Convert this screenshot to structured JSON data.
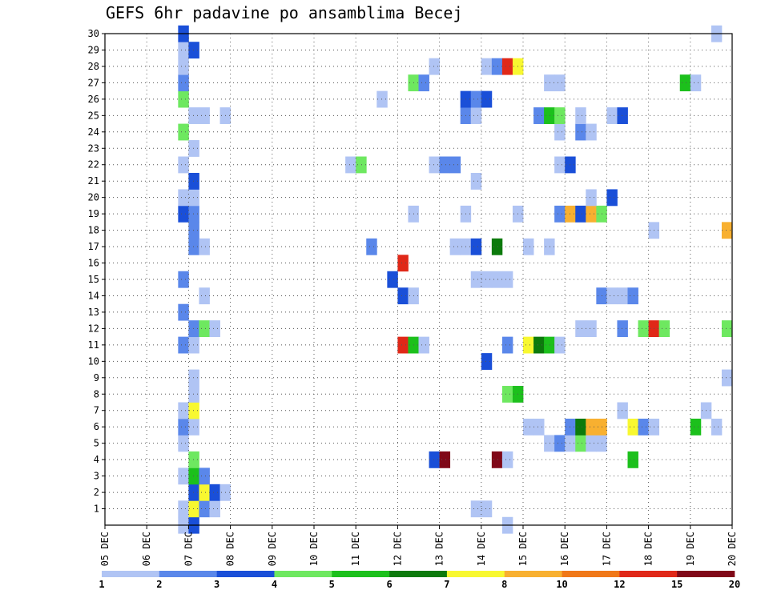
{
  "chart_data": {
    "type": "heatmap",
    "title": "GEFS 6hr padavine po ansamblima Becej",
    "x_tick_labels": [
      "05 DEC",
      "06 DEC",
      "07 DEC",
      "08 DEC",
      "09 DEC",
      "10 DEC",
      "11 DEC",
      "12 DEC",
      "13 DEC",
      "14 DEC",
      "15 DEC",
      "16 DEC",
      "17 DEC",
      "18 DEC",
      "19 DEC",
      "20 DEC"
    ],
    "y_tick_labels": [
      "1",
      "2",
      "3",
      "4",
      "5",
      "6",
      "7",
      "8",
      "9",
      "10",
      "11",
      "12",
      "13",
      "14",
      "15",
      "16",
      "17",
      "18",
      "19",
      "20",
      "21",
      "22",
      "23",
      "24",
      "25",
      "26",
      "27",
      "28",
      "29",
      "30"
    ],
    "xlim_days": [
      5,
      20
    ],
    "ylim_member": [
      0,
      30
    ],
    "step_hours": 6,
    "grid": true,
    "colorbar": {
      "colors": [
        "#b0c4f4",
        "#5a87ea",
        "#1a4fd8",
        "#6ee860",
        "#1cc01c",
        "#0c7a0c",
        "#f8f830",
        "#f8b030",
        "#f07818",
        "#e02818",
        "#800818"
      ],
      "tick_labels": [
        "1",
        "2",
        "3",
        "4",
        "5",
        "6",
        "7",
        "8",
        "10",
        "12",
        "15",
        "20"
      ]
    },
    "cells": [
      [
        6.75,
        0,
        1
      ],
      [
        7.0,
        0,
        3
      ],
      [
        14.5,
        0,
        1
      ],
      [
        6.75,
        1,
        1
      ],
      [
        7.0,
        1,
        7
      ],
      [
        7.25,
        1,
        2
      ],
      [
        7.5,
        1,
        1
      ],
      [
        13.75,
        1,
        1
      ],
      [
        14.0,
        1,
        1
      ],
      [
        7.0,
        2,
        3
      ],
      [
        7.25,
        2,
        7
      ],
      [
        7.5,
        2,
        3
      ],
      [
        7.75,
        2,
        1
      ],
      [
        6.75,
        3,
        1
      ],
      [
        7.0,
        3,
        5
      ],
      [
        7.25,
        3,
        2
      ],
      [
        7.0,
        4,
        4
      ],
      [
        12.75,
        4,
        3
      ],
      [
        13.0,
        4,
        11
      ],
      [
        14.25,
        4,
        11
      ],
      [
        14.5,
        4,
        1
      ],
      [
        17.5,
        4,
        5
      ],
      [
        6.75,
        5,
        1
      ],
      [
        15.5,
        5,
        1
      ],
      [
        15.75,
        5,
        2
      ],
      [
        16.0,
        5,
        1
      ],
      [
        16.25,
        5,
        4
      ],
      [
        16.5,
        5,
        1
      ],
      [
        16.75,
        5,
        1
      ],
      [
        6.75,
        6,
        2
      ],
      [
        7.0,
        6,
        1
      ],
      [
        15.0,
        6,
        1
      ],
      [
        15.25,
        6,
        1
      ],
      [
        16.0,
        6,
        2
      ],
      [
        16.25,
        6,
        6
      ],
      [
        16.5,
        6,
        8
      ],
      [
        16.75,
        6,
        8
      ],
      [
        17.5,
        6,
        7
      ],
      [
        17.75,
        6,
        2
      ],
      [
        18.0,
        6,
        1
      ],
      [
        19.0,
        6,
        5
      ],
      [
        19.5,
        6,
        1
      ],
      [
        6.75,
        7,
        1
      ],
      [
        7.0,
        7,
        7
      ],
      [
        17.25,
        7,
        1
      ],
      [
        19.25,
        7,
        1
      ],
      [
        7.0,
        8,
        1
      ],
      [
        14.5,
        8,
        4
      ],
      [
        14.75,
        8,
        5
      ],
      [
        7.0,
        9,
        1
      ],
      [
        19.75,
        9,
        1
      ],
      [
        14.0,
        10,
        3
      ],
      [
        6.75,
        11,
        2
      ],
      [
        7.0,
        11,
        1
      ],
      [
        12.0,
        11,
        10
      ],
      [
        12.25,
        11,
        5
      ],
      [
        12.5,
        11,
        1
      ],
      [
        14.5,
        11,
        2
      ],
      [
        15.0,
        11,
        7
      ],
      [
        15.25,
        11,
        6
      ],
      [
        15.5,
        11,
        5
      ],
      [
        15.75,
        11,
        1
      ],
      [
        7.0,
        12,
        2
      ],
      [
        7.25,
        12,
        4
      ],
      [
        7.5,
        12,
        1
      ],
      [
        16.25,
        12,
        1
      ],
      [
        16.5,
        12,
        1
      ],
      [
        17.25,
        12,
        2
      ],
      [
        17.75,
        12,
        4
      ],
      [
        18.0,
        12,
        10
      ],
      [
        18.25,
        12,
        4
      ],
      [
        19.75,
        12,
        4
      ],
      [
        6.75,
        13,
        2
      ],
      [
        7.25,
        14,
        1
      ],
      [
        12.0,
        14,
        3
      ],
      [
        12.25,
        14,
        1
      ],
      [
        16.75,
        14,
        2
      ],
      [
        17.0,
        14,
        1
      ],
      [
        17.25,
        14,
        1
      ],
      [
        17.5,
        14,
        2
      ],
      [
        6.75,
        15,
        2
      ],
      [
        11.75,
        15,
        3
      ],
      [
        13.75,
        15,
        1
      ],
      [
        14.0,
        15,
        1
      ],
      [
        14.25,
        15,
        1
      ],
      [
        14.5,
        15,
        1
      ],
      [
        12.0,
        16,
        10
      ],
      [
        7.0,
        17,
        2
      ],
      [
        7.25,
        17,
        1
      ],
      [
        11.25,
        17,
        2
      ],
      [
        13.25,
        17,
        1
      ],
      [
        13.5,
        17,
        1
      ],
      [
        13.75,
        17,
        3
      ],
      [
        14.25,
        17,
        6
      ],
      [
        15.0,
        17,
        1
      ],
      [
        15.5,
        17,
        1
      ],
      [
        7.0,
        18,
        2
      ],
      [
        18.0,
        18,
        1
      ],
      [
        19.75,
        18,
        8
      ],
      [
        6.75,
        19,
        3
      ],
      [
        7.0,
        19,
        2
      ],
      [
        12.25,
        19,
        1
      ],
      [
        13.5,
        19,
        1
      ],
      [
        14.75,
        19,
        1
      ],
      [
        15.75,
        19,
        2
      ],
      [
        16.0,
        19,
        8
      ],
      [
        16.25,
        19,
        3
      ],
      [
        16.5,
        19,
        8
      ],
      [
        16.75,
        19,
        4
      ],
      [
        6.75,
        20,
        1
      ],
      [
        7.0,
        20,
        1
      ],
      [
        16.5,
        20,
        1
      ],
      [
        17.0,
        20,
        3
      ],
      [
        7.0,
        21,
        3
      ],
      [
        13.75,
        21,
        1
      ],
      [
        6.75,
        22,
        1
      ],
      [
        10.75,
        22,
        1
      ],
      [
        11.0,
        22,
        4
      ],
      [
        12.75,
        22,
        1
      ],
      [
        13.0,
        22,
        2
      ],
      [
        13.25,
        22,
        2
      ],
      [
        15.75,
        22,
        1
      ],
      [
        16.0,
        22,
        3
      ],
      [
        7.0,
        23,
        1
      ],
      [
        6.75,
        24,
        4
      ],
      [
        15.75,
        24,
        1
      ],
      [
        16.25,
        24,
        2
      ],
      [
        16.5,
        24,
        1
      ],
      [
        7.0,
        25,
        1
      ],
      [
        7.25,
        25,
        1
      ],
      [
        7.75,
        25,
        1
      ],
      [
        13.5,
        25,
        2
      ],
      [
        13.75,
        25,
        1
      ],
      [
        15.25,
        25,
        2
      ],
      [
        15.5,
        25,
        5
      ],
      [
        15.75,
        25,
        4
      ],
      [
        16.25,
        25,
        1
      ],
      [
        17.0,
        25,
        1
      ],
      [
        17.25,
        25,
        3
      ],
      [
        6.75,
        26,
        4
      ],
      [
        11.5,
        26,
        1
      ],
      [
        13.5,
        26,
        3
      ],
      [
        13.75,
        26,
        2
      ],
      [
        14.0,
        26,
        3
      ],
      [
        6.75,
        27,
        2
      ],
      [
        12.25,
        27,
        4
      ],
      [
        12.5,
        27,
        2
      ],
      [
        15.5,
        27,
        1
      ],
      [
        15.75,
        27,
        1
      ],
      [
        18.75,
        27,
        5
      ],
      [
        19.0,
        27,
        1
      ],
      [
        6.75,
        28,
        1
      ],
      [
        12.75,
        28,
        1
      ],
      [
        14.0,
        28,
        1
      ],
      [
        14.25,
        28,
        2
      ],
      [
        14.5,
        28,
        10
      ],
      [
        14.75,
        28,
        7
      ],
      [
        6.75,
        29,
        1
      ],
      [
        7.0,
        29,
        3
      ],
      [
        6.75,
        30,
        3
      ],
      [
        19.5,
        30,
        1
      ]
    ]
  }
}
